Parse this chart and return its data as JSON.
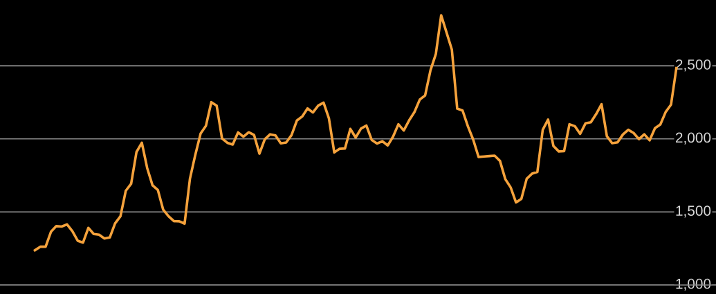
{
  "chart_data": {
    "type": "line",
    "categories": [
      null,
      null,
      null,
      null,
      null,
      null,
      null,
      null,
      null,
      null,
      null,
      null,
      null,
      null,
      null,
      null,
      null,
      null,
      null,
      null,
      null,
      null,
      null,
      null,
      null,
      null,
      null,
      null,
      null,
      null,
      null,
      null,
      null,
      null,
      null,
      null,
      null,
      null,
      null,
      null,
      null,
      null,
      null,
      null,
      null,
      null,
      null,
      null,
      null,
      null,
      null,
      null,
      null,
      null,
      null,
      null,
      null,
      null,
      null,
      null,
      null,
      null,
      null,
      null,
      null,
      null,
      null,
      null,
      null,
      null,
      null,
      null,
      null,
      null,
      null,
      null,
      null,
      null,
      null,
      null,
      null,
      null,
      null,
      null,
      null,
      null,
      null,
      null,
      null,
      null,
      null,
      null,
      null,
      null,
      null,
      null,
      null,
      null,
      null,
      null,
      null,
      null,
      null,
      null,
      null,
      null,
      null,
      null,
      null,
      null,
      null,
      null,
      null,
      null,
      null,
      null,
      null,
      null,
      null,
      null,
      null
    ],
    "series": [
      {
        "color": "#f5a23c",
        "values": [
          1238,
          1262,
          1262,
          1364,
          1403,
          1400,
          1415,
          1369,
          1303,
          1290,
          1391,
          1349,
          1344,
          1318,
          1325,
          1422,
          1470,
          1645,
          1693,
          1910,
          1973,
          1800,
          1682,
          1650,
          1515,
          1470,
          1437,
          1436,
          1420,
          1727,
          1890,
          2037,
          2090,
          2251,
          2227,
          2003,
          1973,
          1961,
          2044,
          2015,
          2045,
          2026,
          1899,
          1997,
          2031,
          2023,
          1969,
          1975,
          2025,
          2125,
          2153,
          2208,
          2180,
          2228,
          2248,
          2140,
          1907,
          1932,
          1934,
          2068,
          2009,
          2070,
          2091,
          1993,
          1968,
          1984,
          1955,
          2015,
          2100,
          2057,
          2126,
          2183,
          2269,
          2297,
          2469,
          2580,
          2846,
          2728,
          2610,
          2207,
          2194,
          2086,
          1994,
          1876,
          1879,
          1882,
          1885,
          1849,
          1724,
          1668,
          1565,
          1589,
          1727,
          1762,
          1774,
          2062,
          2132,
          1951,
          1914,
          1916,
          2100,
          2087,
          2034,
          2106,
          2113,
          2170,
          2237,
          2018,
          1970,
          1976,
          2030,
          2062,
          2040,
          1998,
          2031,
          1990,
          2073,
          2098,
          2184,
          2234,
          2484
        ]
      }
    ],
    "ylim": [
      1000,
      2950
    ],
    "yticks": [
      {
        "value": 1000,
        "label": "1,000"
      },
      {
        "value": 1500,
        "label": "1,500"
      },
      {
        "value": 2000,
        "label": "2,000"
      },
      {
        "value": 2500,
        "label": "2,500"
      }
    ],
    "grid": "y",
    "line_style": "solid",
    "marker": "none",
    "tick_labels": "y"
  }
}
